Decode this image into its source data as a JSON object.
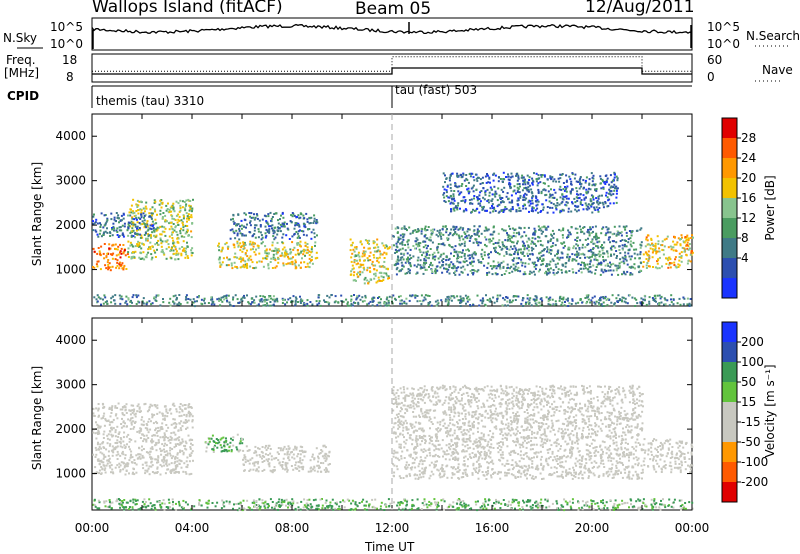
{
  "header": {
    "station": "Wallops Island (fitACF)",
    "beam": "Beam 05",
    "date": "12/Aug/2011"
  },
  "panels": {
    "nsky_label": "N.Sky",
    "nsky_ticks": [
      "10^5",
      "10^0"
    ],
    "nsearch_label": "N.Search",
    "nsearch_ticks": [
      "10^5",
      "10^0"
    ],
    "freq_label": "Freq.",
    "freq_unit": "[MHz]",
    "freq_ticks": [
      "18",
      "8"
    ],
    "nave_label": "Nave",
    "nave_ticks": [
      "60",
      "0"
    ],
    "cpid_label": "CPID",
    "cpid_modes": [
      {
        "name": "themis (tau) 3310",
        "start_hour": 0
      },
      {
        "name": "tau (fast) 503",
        "start_hour": 12
      }
    ]
  },
  "axes": {
    "ylabel": "Slant Range [km]",
    "yticks": [
      "4000",
      "3000",
      "2000",
      "1000"
    ],
    "xticks": [
      "00:00",
      "04:00",
      "08:00",
      "12:00",
      "16:00",
      "20:00",
      "00:00"
    ],
    "xlabel": "Time UT"
  },
  "colorbars": {
    "power": {
      "label": "Power [dB]",
      "ticks": [
        "28",
        "24",
        "20",
        "16",
        "12",
        "8",
        "4"
      ]
    },
    "velocity": {
      "label": "Velocity [m s⁻¹]",
      "ticks": [
        "200",
        "100",
        "50",
        "15",
        "-15",
        "-50",
        "-100",
        "-200"
      ]
    }
  },
  "chart_data": {
    "type": "heatmap",
    "title": "Wallops Island (fitACF)",
    "xlabel": "Time UT",
    "ylabel": "Slant Range [km]",
    "x_range_hours": [
      0,
      24
    ],
    "ylim_km": [
      180,
      4500
    ],
    "freq_mhz": [
      {
        "from": 0,
        "to": 12,
        "value": 10.5
      },
      {
        "from": 12,
        "to": 22,
        "value": 13.0
      },
      {
        "from": 22,
        "to": 24,
        "value": 10.5
      }
    ],
    "nave": [
      {
        "from": 0,
        "to": 12,
        "value": 22
      },
      {
        "from": 12,
        "to": 22,
        "value": 58
      },
      {
        "from": 22,
        "to": 24,
        "value": 22
      }
    ],
    "scatter_regions_power_db": [
      {
        "t0": 0.0,
        "t1": 1.4,
        "r0": 1000,
        "r1": 1600,
        "db": 24
      },
      {
        "t0": 1.4,
        "t1": 4.0,
        "r0": 1250,
        "r1": 2600,
        "db": 16
      },
      {
        "t0": 0.0,
        "t1": 2.5,
        "r0": 1750,
        "r1": 2300,
        "db": 8
      },
      {
        "t0": 5.0,
        "t1": 9.0,
        "r0": 1050,
        "r1": 1650,
        "db": 18
      },
      {
        "t0": 5.5,
        "t1": 9.0,
        "r0": 1700,
        "r1": 2300,
        "db": 8
      },
      {
        "t0": 10.3,
        "t1": 11.9,
        "r0": 700,
        "r1": 1700,
        "db": 18
      },
      {
        "t0": 12.0,
        "t1": 22.0,
        "r0": 900,
        "r1": 2000,
        "db": 10
      },
      {
        "t0": 14.0,
        "t1": 21.0,
        "r0": 2300,
        "r1": 3200,
        "db": 7
      },
      {
        "t0": 22.0,
        "t1": 24.0,
        "r0": 1050,
        "r1": 1800,
        "db": 20
      },
      {
        "t0": 0.0,
        "t1": 24.0,
        "r0": 200,
        "r1": 450,
        "db": 10
      }
    ],
    "scatter_regions_velocity": [
      {
        "t0": 0.0,
        "t1": 4.0,
        "r0": 1000,
        "r1": 2600,
        "v": 0
      },
      {
        "t0": 4.5,
        "t1": 6.0,
        "r0": 1500,
        "r1": 1900,
        "v": 30
      },
      {
        "t0": 6.0,
        "t1": 9.5,
        "r0": 1050,
        "r1": 1650,
        "v": 0
      },
      {
        "t0": 12.0,
        "t1": 22.0,
        "r0": 900,
        "r1": 3000,
        "v": 0
      },
      {
        "t0": 22.0,
        "t1": 24.0,
        "r0": 1050,
        "r1": 1800,
        "v": 0
      },
      {
        "t0": 0.0,
        "t1": 24.0,
        "r0": 200,
        "r1": 450,
        "v": 30
      }
    ]
  }
}
